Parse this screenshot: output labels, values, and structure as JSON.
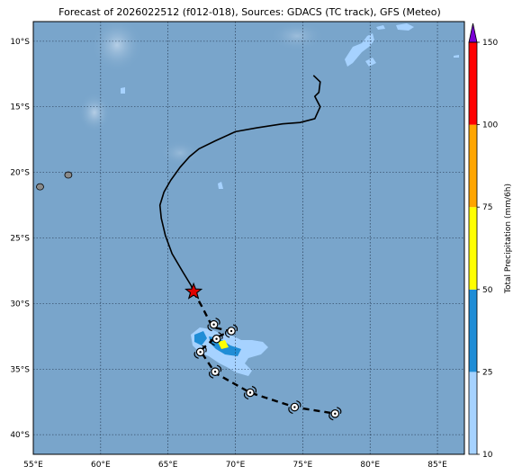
{
  "header": {
    "title": "Forecast of 2026022512 (f012-018), Sources: GDACS (TC track), GFS (Meteo)"
  },
  "map": {
    "lon_range": [
      55,
      87
    ],
    "lat_range": [
      -41.5,
      -8.5
    ],
    "lon_ticks": [
      "55°E",
      "60°E",
      "65°E",
      "70°E",
      "75°E",
      "80°E",
      "85°E"
    ],
    "lon_tick_values": [
      55,
      60,
      65,
      70,
      75,
      80,
      85
    ],
    "lat_ticks": [
      "10°S",
      "15°S",
      "20°S",
      "25°S",
      "30°S",
      "35°S",
      "40°S"
    ],
    "lat_tick_values": [
      -10,
      -15,
      -20,
      -25,
      -30,
      -35,
      -40
    ],
    "grid": true,
    "ocean_color": "#7aa6cb",
    "past_track": [
      [
        75.8,
        -12.6
      ],
      [
        76.3,
        -13.1
      ],
      [
        76.2,
        -13.9
      ],
      [
        75.9,
        -14.2
      ],
      [
        76.3,
        -15.0
      ],
      [
        75.9,
        -15.9
      ],
      [
        74.8,
        -16.2
      ],
      [
        73.5,
        -16.3
      ],
      [
        71.6,
        -16.6
      ],
      [
        70.0,
        -16.9
      ],
      [
        68.5,
        -17.6
      ],
      [
        67.3,
        -18.2
      ],
      [
        66.6,
        -18.8
      ],
      [
        65.9,
        -19.6
      ],
      [
        65.2,
        -20.6
      ],
      [
        64.7,
        -21.5
      ],
      [
        64.4,
        -22.5
      ],
      [
        64.5,
        -23.5
      ],
      [
        64.8,
        -24.8
      ],
      [
        65.3,
        -26.2
      ],
      [
        66.1,
        -27.6
      ],
      [
        66.7,
        -28.6
      ],
      [
        66.9,
        -29.1
      ]
    ],
    "current_position": [
      66.9,
      -29.1
    ],
    "forecast_track": [
      [
        66.9,
        -29.1
      ],
      [
        67.5,
        -30.2
      ],
      [
        68.3,
        -31.8
      ],
      [
        69.6,
        -32.1
      ],
      [
        68.4,
        -32.7
      ],
      [
        67.4,
        -33.6
      ],
      [
        68.5,
        -35.3
      ],
      [
        71.1,
        -36.8
      ],
      [
        74.4,
        -37.9
      ],
      [
        77.4,
        -38.4
      ]
    ],
    "forecast_points": [
      [
        68.4,
        -31.6
      ],
      [
        69.7,
        -32.1
      ],
      [
        68.6,
        -32.7
      ],
      [
        67.4,
        -33.7
      ],
      [
        68.5,
        -35.2
      ],
      [
        71.1,
        -36.8
      ],
      [
        74.4,
        -37.9
      ],
      [
        77.4,
        -38.4
      ]
    ],
    "islands": [
      [
        55.5,
        -21.1
      ],
      [
        57.6,
        -20.2
      ]
    ]
  },
  "colorbar": {
    "label": "Total Precipitation (mm/6h)",
    "ticks": [
      "10",
      "25",
      "50",
      "75",
      "100",
      "150"
    ],
    "tick_values": [
      10,
      25,
      50,
      75,
      100,
      150
    ],
    "colors": [
      "#a6d2ff",
      "#1f8dd6",
      "#ffff00",
      "#ffa500",
      "#ff0000",
      "#7b00d4"
    ]
  }
}
